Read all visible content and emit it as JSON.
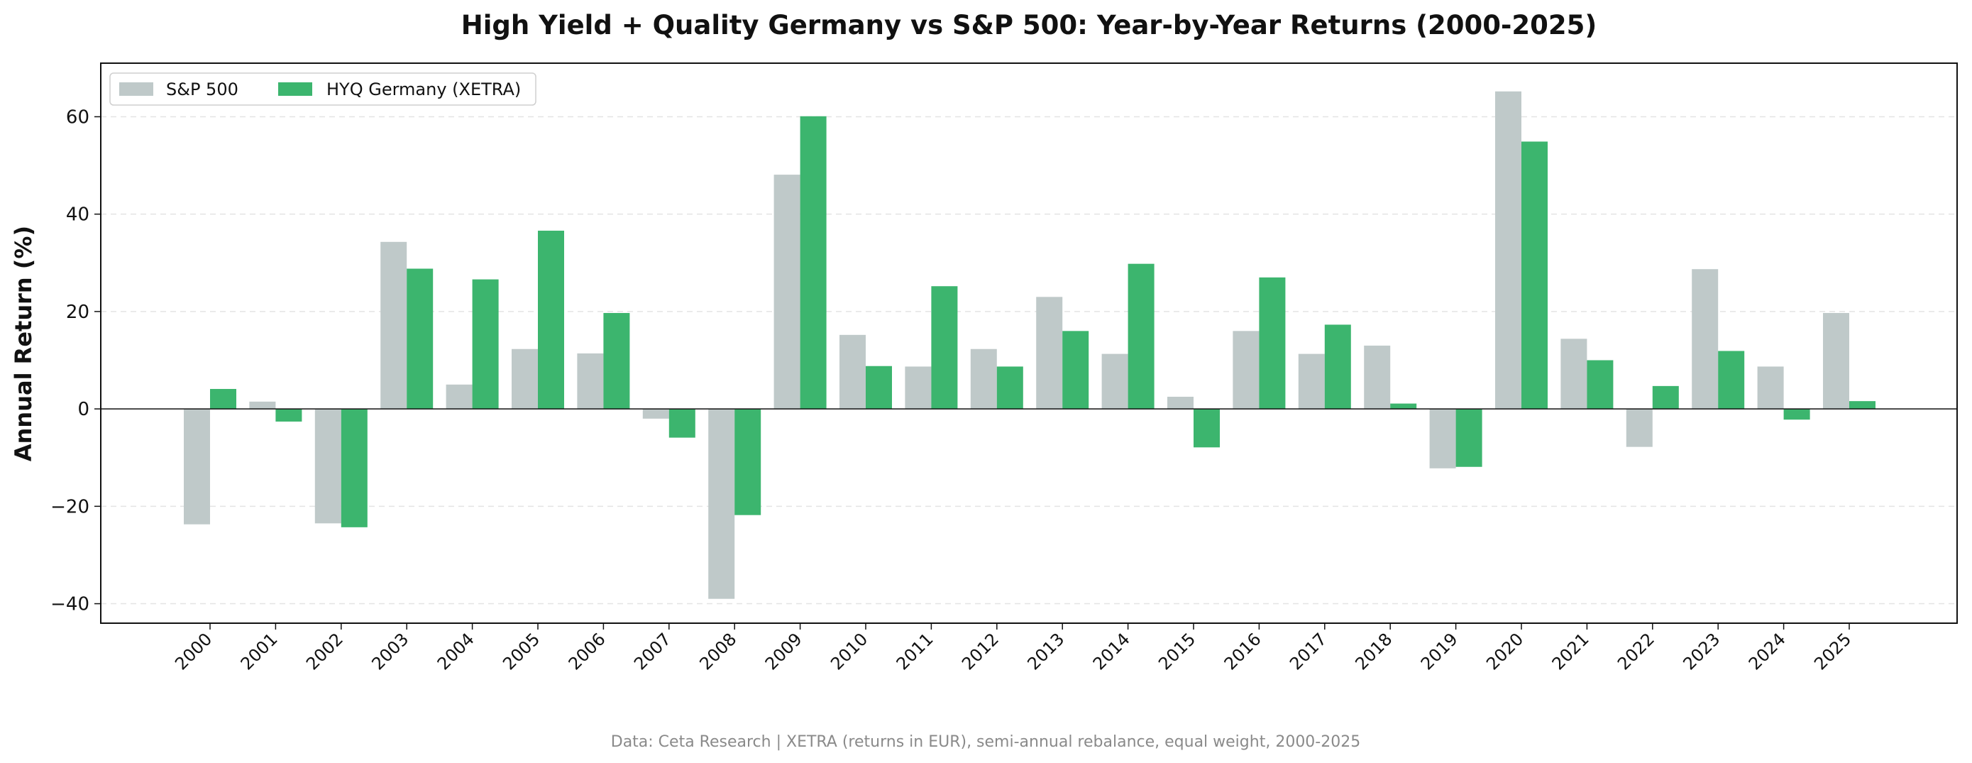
{
  "chart_data": {
    "type": "bar",
    "title": "High Yield + Quality Germany vs S&P 500: Year-by-Year Returns (2000-2025)",
    "xlabel": "",
    "ylabel": "Annual Return (%)",
    "ylim": [
      -44,
      71
    ],
    "yticks": [
      -40,
      -20,
      0,
      20,
      40,
      60
    ],
    "ytick_labels": [
      "−40",
      "−20",
      "0",
      "20",
      "40",
      "60"
    ],
    "grid": "horizontal dashed",
    "legend_position": "top-left",
    "categories": [
      "2000",
      "2001",
      "2002",
      "2003",
      "2004",
      "2005",
      "2006",
      "2007",
      "2008",
      "2009",
      "2010",
      "2011",
      "2012",
      "2013",
      "2014",
      "2015",
      "2016",
      "2017",
      "2018",
      "2019",
      "2020",
      "2021",
      "2022",
      "2023",
      "2024",
      "2025"
    ],
    "series": [
      {
        "name": "S&P 500",
        "color": "#bfc9c9",
        "values": [
          -23.7,
          1.5,
          -23.5,
          34.3,
          5.0,
          12.3,
          11.4,
          -2.0,
          -39.0,
          48.1,
          15.2,
          8.7,
          12.3,
          23.0,
          11.3,
          2.5,
          16.0,
          11.3,
          13.0,
          -12.2,
          65.2,
          14.4,
          -7.8,
          28.7,
          8.7,
          19.7
        ]
      },
      {
        "name": "HYQ Germany (XETRA)",
        "color": "#3cb56e",
        "values": [
          4.1,
          -2.6,
          -24.3,
          28.8,
          26.6,
          36.6,
          19.7,
          -5.9,
          -21.8,
          60.1,
          8.8,
          25.2,
          8.7,
          16.0,
          29.8,
          -7.9,
          27.0,
          17.3,
          1.1,
          -11.9,
          54.9,
          10.0,
          4.7,
          11.9,
          -2.2,
          1.6
        ]
      }
    ],
    "source_note": "Data: Ceta Research | XETRA (returns in EUR), semi-annual rebalance, equal weight, 2000-2025"
  }
}
